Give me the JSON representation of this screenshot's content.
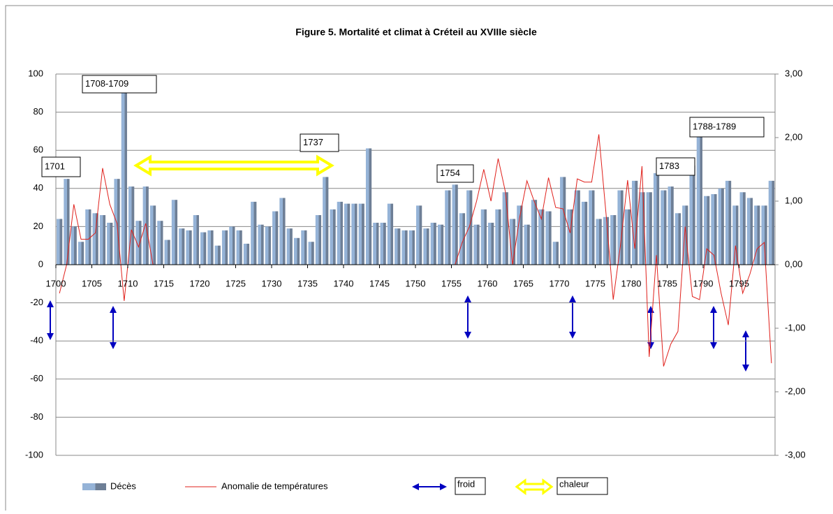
{
  "chart_data": {
    "type": "bar-line",
    "title": "Figure 5. Mortalité et climat à Créteil au XVIIIe siècle",
    "x": [
      1700,
      1701,
      1702,
      1703,
      1704,
      1705,
      1706,
      1707,
      1708,
      1709,
      1710,
      1711,
      1712,
      1713,
      1714,
      1715,
      1716,
      1717,
      1718,
      1719,
      1720,
      1721,
      1722,
      1723,
      1724,
      1725,
      1726,
      1727,
      1728,
      1729,
      1730,
      1731,
      1732,
      1733,
      1734,
      1735,
      1736,
      1737,
      1738,
      1739,
      1740,
      1741,
      1742,
      1743,
      1744,
      1745,
      1746,
      1747,
      1748,
      1749,
      1750,
      1751,
      1752,
      1753,
      1754,
      1755,
      1756,
      1757,
      1758,
      1759,
      1760,
      1761,
      1762,
      1763,
      1764,
      1765,
      1766,
      1767,
      1768,
      1769,
      1770,
      1771,
      1772,
      1773,
      1774,
      1775,
      1776,
      1777,
      1778,
      1779,
      1780,
      1781,
      1782,
      1783,
      1784,
      1785,
      1786,
      1787,
      1788,
      1789,
      1790,
      1791,
      1792,
      1793,
      1794,
      1795,
      1796,
      1797,
      1798,
      1799
    ],
    "xlim": [
      1700,
      1800
    ],
    "xticks": [
      1700,
      1705,
      1710,
      1715,
      1720,
      1725,
      1730,
      1735,
      1740,
      1745,
      1750,
      1755,
      1760,
      1765,
      1770,
      1775,
      1780,
      1785,
      1790,
      1795
    ],
    "ylim": [
      -100,
      100
    ],
    "yticks": [
      -100,
      -80,
      -60,
      -40,
      -20,
      0,
      20,
      40,
      60,
      80,
      100
    ],
    "y2lim": [
      -3,
      3
    ],
    "y2ticks": [
      {
        "value": -3,
        "label": "-3,00"
      },
      {
        "value": -2,
        "label": "-2,00"
      },
      {
        "value": -1,
        "label": "-1,00"
      },
      {
        "value": 0,
        "label": "0,00"
      },
      {
        "value": 1,
        "label": "1,00"
      },
      {
        "value": 2,
        "label": "2,00"
      },
      {
        "value": 3,
        "label": "3,00"
      }
    ],
    "grid": true,
    "series": [
      {
        "name": "Décès",
        "type": "bar",
        "color": "#95b3d7",
        "values": [
          24,
          45,
          20,
          12,
          29,
          27,
          26,
          22,
          45,
          90,
          41,
          23,
          41,
          31,
          23,
          13,
          34,
          19,
          18,
          26,
          17,
          18,
          10,
          18,
          20,
          18,
          11,
          33,
          21,
          20,
          28,
          35,
          19,
          14,
          18,
          12,
          26,
          46,
          29,
          33,
          32,
          32,
          32,
          61,
          22,
          22,
          32,
          19,
          18,
          18,
          31,
          19,
          22,
          21,
          39,
          42,
          27,
          39,
          21,
          29,
          22,
          29,
          38,
          24,
          31,
          21,
          34,
          29,
          28,
          12,
          46,
          29,
          39,
          33,
          39,
          24,
          25,
          26,
          39,
          29,
          44,
          38,
          38,
          48,
          39,
          41,
          27,
          31,
          52,
          68,
          36,
          37,
          40,
          44,
          31,
          38,
          35,
          31,
          31,
          44
        ]
      },
      {
        "name": "Anomalie de températures",
        "type": "line",
        "axis": "y2",
        "color": "#e0201b",
        "values": [
          -0.45,
          0,
          0.95,
          0.4,
          0.4,
          0.5,
          1.52,
          0.95,
          0.65,
          -0.57,
          0.55,
          0.28,
          0.65,
          0,
          0,
          0,
          0,
          0,
          0,
          0,
          0,
          0,
          0,
          0,
          0,
          0,
          0,
          0,
          0,
          0,
          0,
          0,
          0,
          0,
          0,
          0,
          0,
          0,
          0,
          0,
          0,
          0,
          0,
          0,
          0,
          0,
          0,
          0,
          0,
          0,
          0,
          0,
          0,
          0,
          0,
          0,
          0.35,
          0.6,
          1.0,
          1.5,
          1.0,
          1.67,
          1.15,
          0,
          0.75,
          1.32,
          1.0,
          0.72,
          1.37,
          0.9,
          0.88,
          0.5,
          1.35,
          1.3,
          1.3,
          2.05,
          0.8,
          -0.55,
          0.3,
          1.33,
          0.25,
          1.55,
          -1.45,
          0.15,
          -1.6,
          -1.25,
          -1.05,
          0.6,
          -0.5,
          -0.55,
          0.25,
          0.15,
          -0.45,
          -0.95,
          0.3,
          -0.45,
          -0.15,
          0.25,
          0.35,
          -1.55
        ]
      }
    ],
    "annotations": [
      "1701",
      "1708-1709",
      "1737",
      "1754",
      "1783",
      "1788-1789"
    ],
    "arrow_legend": [
      "froid",
      "chaleur"
    ]
  }
}
